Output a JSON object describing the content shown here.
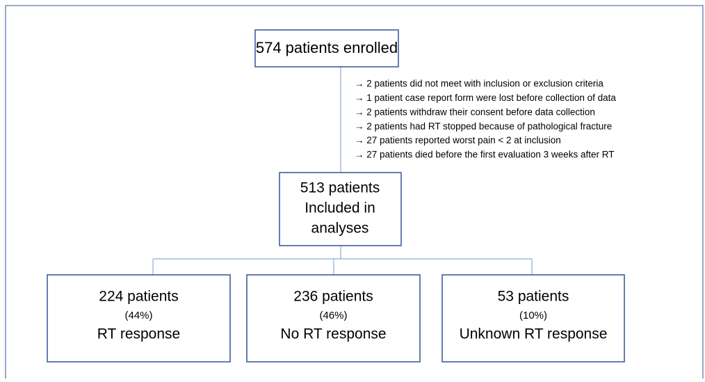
{
  "enrolled": {
    "label": "574 patients enrolled"
  },
  "exclusions": [
    "→ 2 patients did not meet with inclusion or exclusion criteria",
    "→ 1 patient case report form were lost before collection of data",
    "→ 2 patients withdraw their consent before data collection",
    "→ 2 patients had RT stopped because of pathological fracture",
    "→ 27 patients reported worst pain < 2 at inclusion",
    "→ 27 patients died before the first evaluation 3 weeks after RT"
  ],
  "included": {
    "lines": [
      "513 patients",
      "Included in",
      "analyses"
    ]
  },
  "groups": [
    {
      "count": "224 patients",
      "percent": "(44%)",
      "label": "RT response"
    },
    {
      "count": "236 patients",
      "percent": "(46%)",
      "label": "No RT response"
    },
    {
      "count": "53 patients",
      "percent": "(10%)",
      "label": "Unknown RT response"
    }
  ]
}
